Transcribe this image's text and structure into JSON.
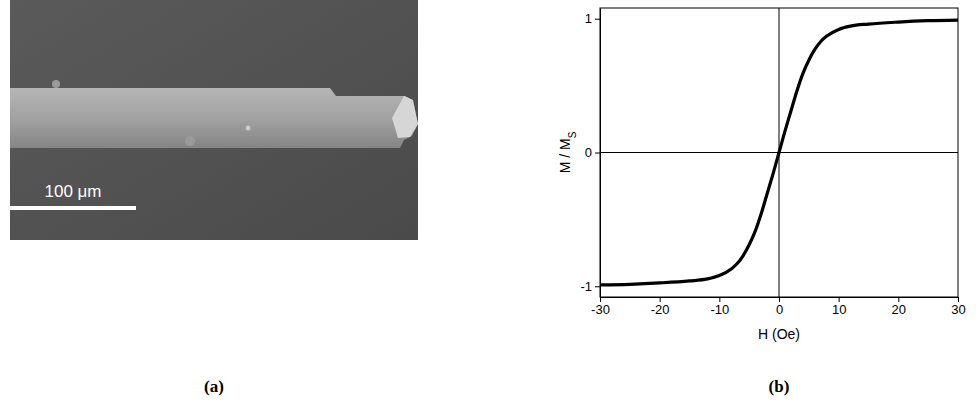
{
  "chart_data": {
    "type": "line",
    "panel_label": "(b)",
    "xlabel": "H (Oe)",
    "ylabel": "M / MS",
    "x": [
      -30,
      -25,
      -20,
      -15,
      -12,
      -10,
      -8,
      -7,
      -6,
      -5,
      -4,
      -3,
      -2,
      -1,
      0,
      1,
      2,
      3,
      4,
      5,
      6,
      7,
      8,
      10,
      12,
      15,
      20,
      25,
      30
    ],
    "values": [
      -0.99,
      -0.985,
      -0.975,
      -0.96,
      -0.945,
      -0.92,
      -0.87,
      -0.83,
      -0.77,
      -0.69,
      -0.59,
      -0.46,
      -0.31,
      -0.16,
      0,
      0.16,
      0.31,
      0.46,
      0.59,
      0.69,
      0.77,
      0.83,
      0.87,
      0.92,
      0.945,
      0.96,
      0.975,
      0.985,
      0.99
    ],
    "color": "#000000",
    "xlim": [
      -30,
      30
    ],
    "xticks": [
      -30,
      -20,
      -10,
      0,
      10,
      20,
      30
    ],
    "ylim": [
      -1.08,
      1.08
    ],
    "yticks": [
      -1,
      0,
      1
    ]
  },
  "image_panel": {
    "panel_label": "(a)",
    "scale_bar_label": "100 μm"
  }
}
